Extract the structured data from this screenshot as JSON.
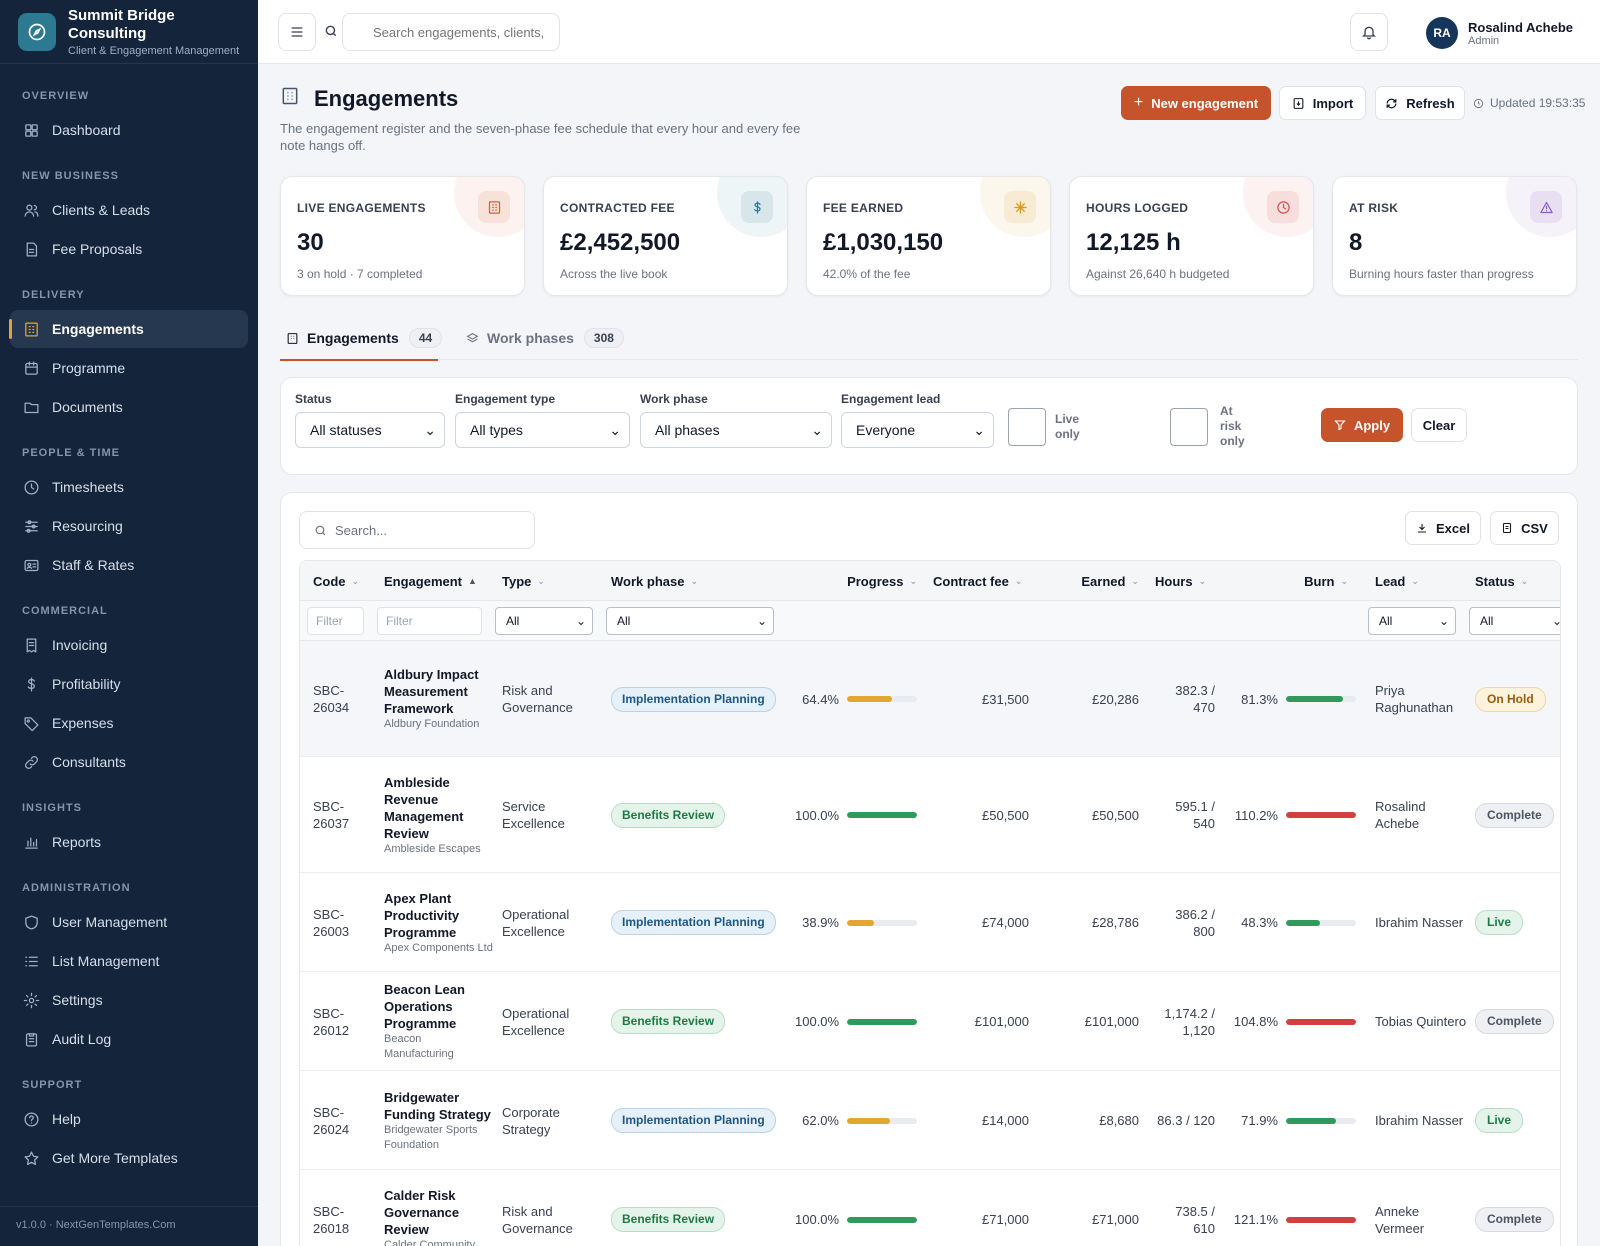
{
  "brand": {
    "name": "Summit Bridge Consulting",
    "subtitle": "Client & Engagement Management"
  },
  "sidebar": {
    "sections": [
      {
        "title": "Overview",
        "items": [
          {
            "label": "Dashboard",
            "icon": "dashboard-icon"
          }
        ]
      },
      {
        "title": "New Business",
        "items": [
          {
            "label": "Clients & Leads",
            "icon": "users-icon"
          },
          {
            "label": "Fee Proposals",
            "icon": "document-icon"
          }
        ]
      },
      {
        "title": "Delivery",
        "items": [
          {
            "label": "Engagements",
            "icon": "building-icon",
            "active": true
          },
          {
            "label": "Programme",
            "icon": "calendar-icon"
          },
          {
            "label": "Documents",
            "icon": "folder-icon"
          }
        ]
      },
      {
        "title": "People & Time",
        "items": [
          {
            "label": "Timesheets",
            "icon": "clock-icon"
          },
          {
            "label": "Resourcing",
            "icon": "sliders-icon"
          },
          {
            "label": "Staff & Rates",
            "icon": "id-card-icon"
          }
        ]
      },
      {
        "title": "Commercial",
        "items": [
          {
            "label": "Invoicing",
            "icon": "invoice-icon"
          },
          {
            "label": "Profitability",
            "icon": "dollar-icon"
          },
          {
            "label": "Expenses",
            "icon": "tag-icon"
          },
          {
            "label": "Consultants",
            "icon": "link-icon"
          }
        ]
      },
      {
        "title": "Insights",
        "items": [
          {
            "label": "Reports",
            "icon": "bar-chart-icon"
          }
        ]
      },
      {
        "title": "Administration",
        "items": [
          {
            "label": "User Management",
            "icon": "shield-icon"
          },
          {
            "label": "List Management",
            "icon": "list-icon"
          },
          {
            "label": "Settings",
            "icon": "gear-icon"
          },
          {
            "label": "Audit Log",
            "icon": "clipboard-icon"
          }
        ]
      },
      {
        "title": "Support",
        "items": [
          {
            "label": "Help",
            "icon": "help-icon"
          },
          {
            "label": "Get More Templates",
            "icon": "star-icon"
          }
        ]
      }
    ],
    "footer": "v1.0.0 · NextGenTemplates.Com"
  },
  "topbar": {
    "search_placeholder": "Search engagements, clients, s",
    "user": {
      "initials": "RA",
      "name": "Rosalind Achebe",
      "role": "Admin"
    }
  },
  "header": {
    "title": "Engagements",
    "description": "The engagement register and the seven-phase fee schedule that every hour and every fee note hangs off.",
    "new_label": "New engagement",
    "import_label": "Import",
    "refresh_label": "Refresh",
    "updated": "Updated 19:53:35"
  },
  "kpis": [
    {
      "label": "Live Engagements",
      "value": "30",
      "sub": "3 on hold · 7 completed",
      "icon": "building-icon",
      "color": "#d9603b"
    },
    {
      "label": "Contracted Fee",
      "value": "£2,452,500",
      "sub": "Across the live book",
      "icon": "dollar-icon",
      "color": "#2c7a92"
    },
    {
      "label": "Fee Earned",
      "value": "£1,030,150",
      "sub": "42.0% of the fee",
      "icon": "sparkle-icon",
      "color": "#d99a1c"
    },
    {
      "label": "Hours Logged",
      "value": "12,125 h",
      "sub": "Against 26,640 h budgeted",
      "icon": "clock-icon",
      "color": "#d9534f"
    },
    {
      "label": "At Risk",
      "value": "8",
      "sub": "Burning hours faster than progress",
      "icon": "alert-icon",
      "color": "#8b5cc4"
    }
  ],
  "tabs": [
    {
      "label": "Engagements",
      "count": "44",
      "active": true
    },
    {
      "label": "Work phases",
      "count": "308",
      "active": false
    }
  ],
  "filters": {
    "status": {
      "label": "Status",
      "value": "All statuses"
    },
    "type": {
      "label": "Engagement type",
      "value": "All types"
    },
    "phase": {
      "label": "Work phase",
      "value": "All phases"
    },
    "lead": {
      "label": "Engagement lead",
      "value": "Everyone"
    },
    "live_only": "Live only",
    "at_risk_only": "At risk only",
    "apply_label": "Apply",
    "clear_label": "Clear"
  },
  "table": {
    "search_placeholder": "Search...",
    "excel_label": "Excel",
    "csv_label": "CSV",
    "columns": [
      "Code",
      "Engagement",
      "Type",
      "Work phase",
      "Progress",
      "Contract fee",
      "Earned",
      "Hours",
      "Burn",
      "Lead",
      "Status"
    ],
    "filter_placeholder": "Filter",
    "filter_all": "All",
    "rows": [
      {
        "code": "SBC-26034",
        "name": "Aldbury Impact Measurement Framework",
        "client": "Aldbury Foundation",
        "type": "Risk and Governance",
        "phase": "Implementation Planning",
        "progress": "64.4%",
        "progress_value": 0.644,
        "fee": "£31,500",
        "earned": "£20,286",
        "hours": "382.3 / 470",
        "burn": "81.3%",
        "burn_value": 0.813,
        "lead": "Priya Raghunathan",
        "status": "On Hold"
      },
      {
        "code": "SBC-26037",
        "name": "Ambleside Revenue Management Review",
        "client": "Ambleside Escapes",
        "type": "Service Excellence",
        "phase": "Benefits Review",
        "progress": "100.0%",
        "progress_value": 1.0,
        "fee": "£50,500",
        "earned": "£50,500",
        "hours": "595.1 / 540",
        "burn": "110.2%",
        "burn_value": 1.102,
        "lead": "Rosalind Achebe",
        "status": "Complete"
      },
      {
        "code": "SBC-26003",
        "name": "Apex Plant Productivity Programme",
        "client": "Apex Components Ltd",
        "type": "Operational Excellence",
        "phase": "Implementation Planning",
        "progress": "38.9%",
        "progress_value": 0.389,
        "fee": "£74,000",
        "earned": "£28,786",
        "hours": "386.2 / 800",
        "burn": "48.3%",
        "burn_value": 0.483,
        "lead": "Ibrahim Nasser",
        "status": "Live"
      },
      {
        "code": "SBC-26012",
        "name": "Beacon Lean Operations Programme",
        "client": "Beacon Manufacturing",
        "type": "Operational Excellence",
        "phase": "Benefits Review",
        "progress": "100.0%",
        "progress_value": 1.0,
        "fee": "£101,000",
        "earned": "£101,000",
        "hours": "1,174.2 / 1,120",
        "burn": "104.8%",
        "burn_value": 1.048,
        "lead": "Tobias Quintero",
        "status": "Complete"
      },
      {
        "code": "SBC-26024",
        "name": "Bridgewater Funding Strategy",
        "client": "Bridgewater Sports Foundation",
        "type": "Corporate Strategy",
        "phase": "Implementation Planning",
        "progress": "62.0%",
        "progress_value": 0.62,
        "fee": "£14,000",
        "earned": "£8,680",
        "hours": "86.3 / 120",
        "burn": "71.9%",
        "burn_value": 0.719,
        "lead": "Ibrahim Nasser",
        "status": "Live"
      },
      {
        "code": "SBC-26018",
        "name": "Calder Risk Governance Review",
        "client": "Calder Community",
        "type": "Risk and Governance",
        "phase": "Benefits Review",
        "progress": "100.0%",
        "progress_value": 1.0,
        "fee": "£71,000",
        "earned": "£71,000",
        "hours": "738.5 / 610",
        "burn": "121.1%",
        "burn_value": 1.211,
        "lead": "Anneke Vermeer",
        "status": "Complete"
      }
    ]
  },
  "colors": {
    "accent": "#c5532b",
    "sidebar": "#13243b",
    "progress_partial": "#e0a82e",
    "progress_full": "#2e9a5c",
    "burn_ok": "#2e9a5c",
    "burn_over": "#d23f3f"
  }
}
